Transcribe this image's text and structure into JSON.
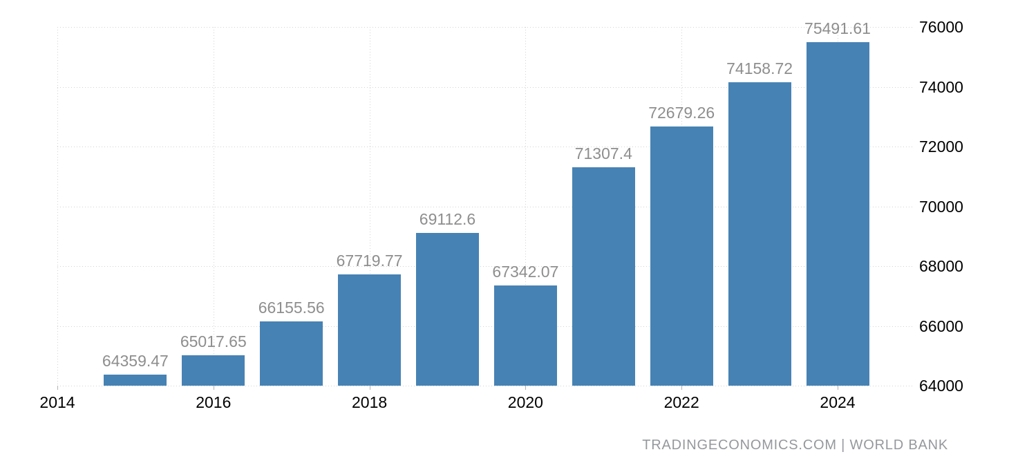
{
  "attribution": "TRADINGECONOMICS.COM | WORLD BANK",
  "colors": {
    "bar": "#4782b4",
    "grid": "#d2d2d2",
    "tick": "#b3b3b3",
    "value_label": "#8e8e8e",
    "axis_label": "#000000",
    "attribution": "#95989c",
    "background": "#ffffff"
  },
  "chart_data": {
    "type": "bar",
    "x": [
      2015,
      2016,
      2017,
      2018,
      2019,
      2020,
      2021,
      2022,
      2023,
      2024
    ],
    "values": [
      64359.47,
      65017.65,
      66155.56,
      67719.77,
      69112.6,
      67342.07,
      71307.4,
      72679.26,
      74158.72,
      75491.61
    ],
    "bar_labels": [
      "64359.47",
      "65017.65",
      "66155.56",
      "67719.77",
      "69112.6",
      "67342.07",
      "71307.4",
      "72679.26",
      "74158.72",
      "75491.61"
    ],
    "x_tick_years": [
      2014,
      2016,
      2018,
      2020,
      2022,
      2024
    ],
    "x_tick_labels": [
      "2014",
      "2016",
      "2018",
      "2020",
      "2022",
      "2024"
    ],
    "y_ticks": [
      64000,
      66000,
      68000,
      70000,
      72000,
      74000,
      76000
    ],
    "y_tick_labels": [
      "64000",
      "66000",
      "68000",
      "70000",
      "72000",
      "74000",
      "76000"
    ],
    "ylim": [
      64000,
      76000
    ],
    "xlim": [
      2014,
      2024.98
    ],
    "grid": "dotted",
    "title": "",
    "xlabel": "",
    "ylabel": "",
    "legend_position": "none"
  }
}
